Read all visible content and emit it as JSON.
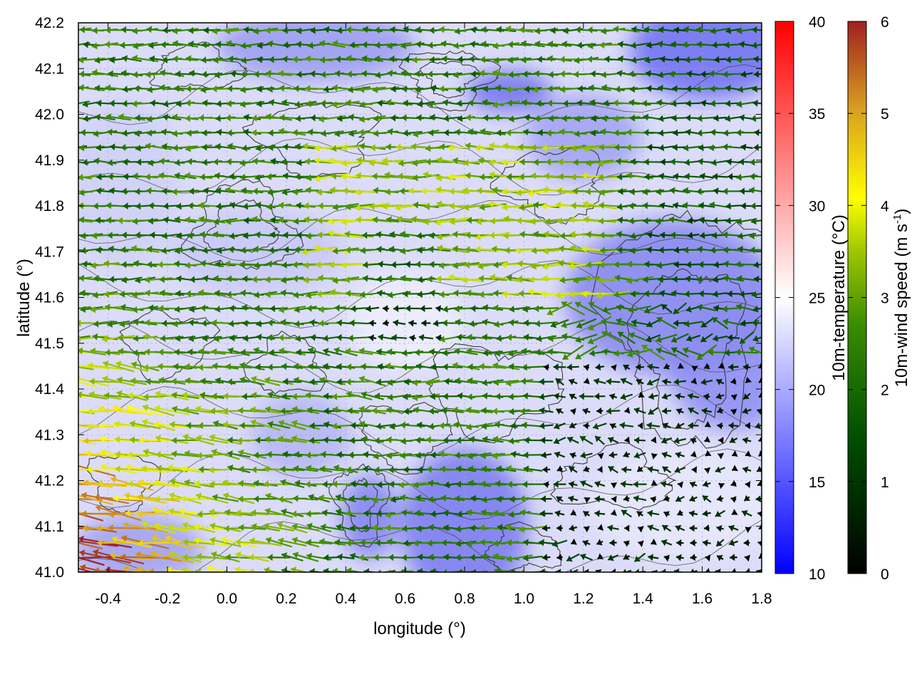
{
  "chart_data": {
    "type": "vector-field",
    "title": "",
    "xlabel": "longitude (°)",
    "ylabel": "latitude (°)",
    "xlim": [
      -0.5,
      1.8
    ],
    "ylim": [
      41.0,
      42.2
    ],
    "xticks": [
      "-0.4",
      "-0.2",
      "0.0",
      "0.2",
      "0.4",
      "0.6",
      "0.8",
      "1.0",
      "1.2",
      "1.4",
      "1.6",
      "1.8"
    ],
    "xtick_values": [
      -0.4,
      -0.2,
      0.0,
      0.2,
      0.4,
      0.6,
      0.8,
      1.0,
      1.2,
      1.4,
      1.6,
      1.8
    ],
    "yticks": [
      "41.0",
      "41.1",
      "41.2",
      "41.3",
      "41.4",
      "41.5",
      "41.6",
      "41.7",
      "41.8",
      "41.9",
      "42.0",
      "42.1",
      "42.2"
    ],
    "ytick_values": [
      41.0,
      41.1,
      41.2,
      41.3,
      41.4,
      41.5,
      41.6,
      41.7,
      41.8,
      41.9,
      42.0,
      42.1,
      42.2
    ],
    "grid": true,
    "colorbars": [
      {
        "name": "temperature",
        "label_main": "10m-temperature (°C)",
        "range": [
          10,
          40
        ],
        "ticks": [
          "10",
          "15",
          "20",
          "25",
          "30",
          "35",
          "40"
        ],
        "tick_values": [
          10,
          15,
          20,
          25,
          30,
          35,
          40
        ],
        "colors": [
          "#0000ff",
          "#ffffff",
          "#ff0000"
        ]
      },
      {
        "name": "wind-speed",
        "label_main": "10m-wind speed (m s",
        "label_sup": "-1",
        "label_end": ")",
        "range": [
          0,
          6
        ],
        "ticks": [
          "0",
          "1",
          "2",
          "3",
          "4",
          "5",
          "6"
        ],
        "tick_values": [
          0,
          1,
          2,
          3,
          4,
          5,
          6
        ],
        "colors": [
          "#000000",
          "#006400",
          "#7cb800",
          "#ffff00",
          "#d4a017",
          "#a52a2a"
        ]
      }
    ],
    "field_summary": {
      "temperature_background_range_C": [
        15,
        25
      ],
      "cooler_regions": [
        {
          "lon": [
            1.45,
            1.8
          ],
          "lat": [
            42.0,
            42.2
          ]
        },
        {
          "lon": [
            1.3,
            1.8
          ],
          "lat": [
            41.4,
            41.75
          ]
        },
        {
          "lon": [
            0.65,
            0.95
          ],
          "lat": [
            41.0,
            41.25
          ]
        },
        {
          "lon": [
            0.4,
            0.55
          ],
          "lat": [
            41.05,
            41.2
          ]
        }
      ],
      "dominant_wind_direction": "from east",
      "stronger_wind_region": {
        "lon": [
          -0.5,
          0.3
        ],
        "lat": [
          41.0,
          41.55
        ],
        "speed_ms": [
          4,
          6
        ]
      },
      "weaker_wind_region": {
        "lon": [
          1.1,
          1.8
        ],
        "lat": [
          41.0,
          41.4
        ],
        "speed_ms": [
          0,
          1.5
        ]
      }
    }
  }
}
